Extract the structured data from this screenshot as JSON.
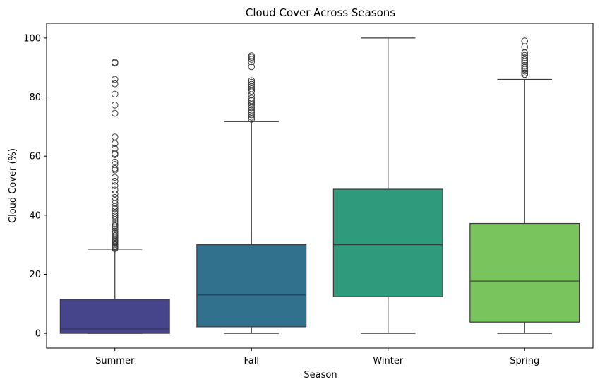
{
  "chart_data": {
    "type": "box",
    "title": "Cloud Cover Across Seasons",
    "xlabel": "Season",
    "ylabel": "Cloud Cover (%)",
    "ylim": [
      -5,
      105
    ],
    "yticks": [
      0,
      20,
      40,
      60,
      80,
      100
    ],
    "categories": [
      "Summer",
      "Fall",
      "Winter",
      "Spring"
    ],
    "colors": [
      "#46448a",
      "#31718e",
      "#2f9b7c",
      "#79c45c"
    ],
    "boxes": [
      {
        "label": "Summer",
        "whisker_low": 0,
        "q1": 0,
        "median": 1.5,
        "q3": 11.5,
        "whisker_high": 28.5,
        "outliers": [
          28.7,
          29.0,
          29.3,
          29.6,
          30.0,
          30.4,
          30.8,
          31.2,
          31.6,
          32.0,
          32.5,
          33.0,
          33.5,
          34.0,
          34.6,
          35.2,
          35.8,
          36.4,
          37.0,
          37.7,
          38.4,
          39.1,
          39.8,
          40.6,
          41.4,
          42.2,
          43.0,
          44.0,
          45.0,
          46.0,
          47.2,
          48.5,
          50.0,
          51.5,
          52.8,
          55.3,
          55.8,
          57.2,
          58.0,
          60.5,
          60.9,
          62.5,
          64.3,
          66.5,
          74.5,
          77.3,
          81.0,
          84.5,
          86.0,
          91.5,
          91.8
        ]
      },
      {
        "label": "Fall",
        "whisker_low": 0,
        "q1": 2.2,
        "median": 13.0,
        "q3": 30.0,
        "whisker_high": 71.7,
        "outliers": [
          72.5,
          73.2,
          74.0,
          74.8,
          75.6,
          76.4,
          77.3,
          78.0,
          78.8,
          79.6,
          80.7,
          82.0,
          82.8,
          83.5,
          84.3,
          85.0,
          85.6,
          90.3,
          92.0,
          92.8,
          93.5,
          94.0
        ]
      },
      {
        "label": "Winter",
        "whisker_low": 0,
        "q1": 12.4,
        "median": 30.0,
        "q3": 48.8,
        "whisker_high": 100,
        "outliers": []
      },
      {
        "label": "Spring",
        "whisker_low": 0,
        "q1": 3.8,
        "median": 17.7,
        "q3": 37.2,
        "whisker_high": 86.0,
        "outliers": [
          87.7,
          88.2,
          88.8,
          89.4,
          90.0,
          90.7,
          91.4,
          92.0,
          92.6,
          93.3,
          94.1,
          95.0,
          97.0,
          99.0
        ]
      }
    ],
    "grid": false,
    "legend": "none"
  }
}
